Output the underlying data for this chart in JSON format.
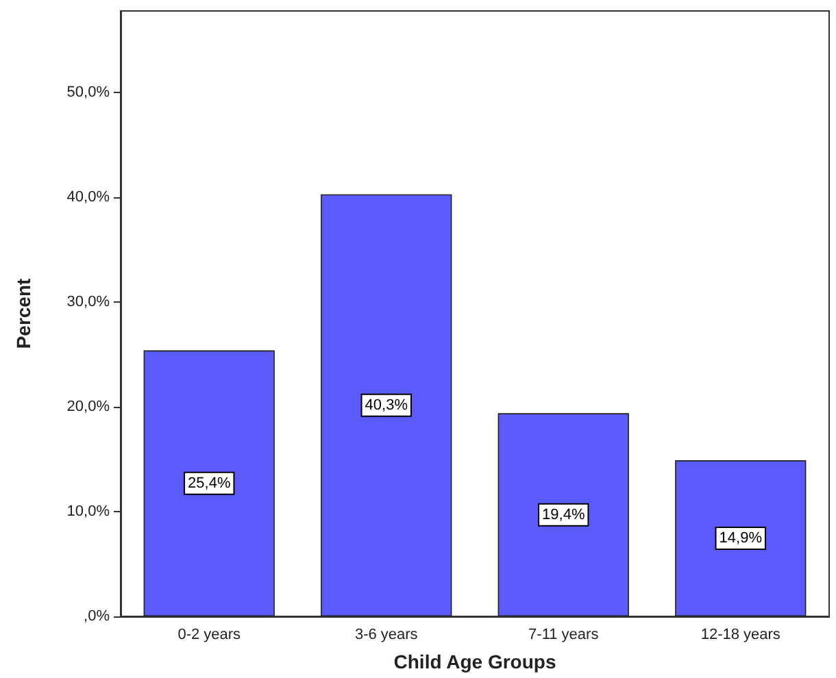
{
  "chart_data": {
    "type": "bar",
    "xlabel": "Child Age Groups",
    "ylabel": "Percent",
    "categories": [
      "0-2 years",
      "3-6 years",
      "7-11 years",
      "12-18 years"
    ],
    "values": [
      25.4,
      40.3,
      19.4,
      14.9
    ],
    "value_labels": [
      "25,4%",
      "40,3%",
      "19,4%",
      "14,9%"
    ],
    "color": "#5b5bfb",
    "ylim": [
      0,
      57.8
    ],
    "yticks": [
      {
        "value": 0,
        "label": ",0%"
      },
      {
        "value": 10,
        "label": "10,0%"
      },
      {
        "value": 20,
        "label": "20,0%"
      },
      {
        "value": 30,
        "label": "30,0%"
      },
      {
        "value": 40,
        "label": "40,0%"
      },
      {
        "value": 50,
        "label": "50,0%"
      }
    ],
    "grid": false
  }
}
